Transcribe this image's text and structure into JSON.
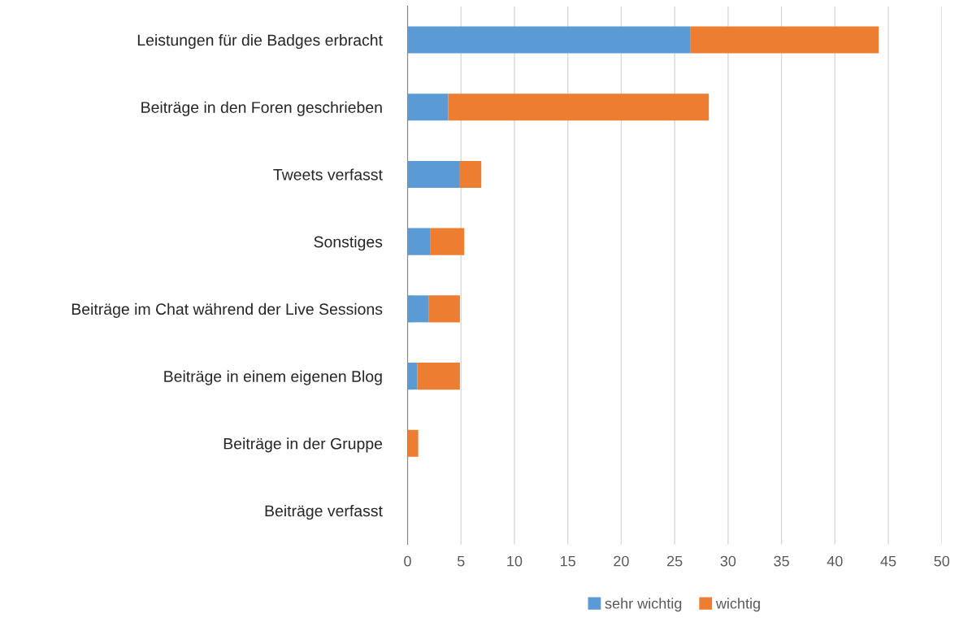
{
  "chart_data": {
    "type": "bar",
    "orientation": "horizontal",
    "stacked": true,
    "categories": [
      "Leistungen für die Badges erbracht",
      "Beiträge in den Foren geschrieben",
      "Tweets verfasst",
      "Sonstiges",
      "Beiträge im Chat während der Live Sessions",
      "Beiträge in einem eigenen Blog",
      "Beiträge in der Gruppe",
      "Beiträge verfasst"
    ],
    "series": [
      {
        "name": "sehr wichtig",
        "color": "#5b9bd5",
        "values": [
          26.5,
          3.8,
          4.9,
          2.1,
          2.0,
          0.9,
          0,
          0
        ]
      },
      {
        "name": "wichtig",
        "color": "#ed7d31",
        "values": [
          17.6,
          24.4,
          2.0,
          3.2,
          2.9,
          4.0,
          1.0,
          0
        ]
      }
    ],
    "xlim": [
      0,
      50
    ],
    "xticks": [
      0,
      5,
      10,
      15,
      20,
      25,
      30,
      35,
      40,
      45,
      50
    ],
    "grid": "x",
    "legend": "bottom"
  }
}
